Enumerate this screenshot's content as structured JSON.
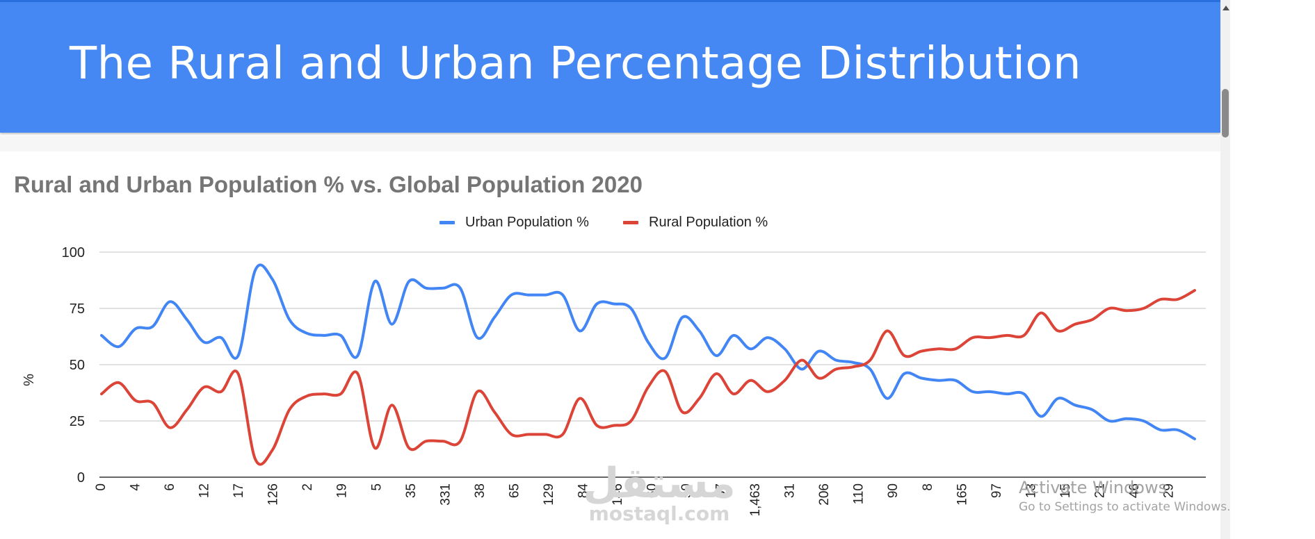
{
  "slide": {
    "title": "The Rural and Urban Percentage Distribution"
  },
  "chart_data": {
    "type": "line",
    "title": "Rural and Urban Population % vs. Global Population 2020",
    "ylabel": "%",
    "xlabel": "",
    "ylim": [
      0,
      100
    ],
    "yticks": [
      0,
      25,
      50,
      75,
      100
    ],
    "grid": true,
    "legend": "top",
    "x_tick_labels": [
      "0",
      "4",
      "6",
      "12",
      "17",
      "126",
      "2",
      "19",
      "5",
      "35",
      "331",
      "38",
      "65",
      "129",
      "84",
      "146",
      "60",
      "59",
      "37",
      "1,463",
      "31",
      "206",
      "110",
      "90",
      "8",
      "165",
      "97",
      "13",
      "15",
      "21",
      "46",
      "29"
    ],
    "series": [
      {
        "name": "Urban Population %",
        "color": "#4285f4",
        "values": [
          63,
          58,
          66,
          67,
          78,
          70,
          60,
          62,
          54,
          92,
          88,
          70,
          64,
          63,
          63,
          54,
          87,
          68,
          87,
          84,
          84,
          84,
          62,
          71,
          81,
          81,
          81,
          81,
          65,
          77,
          77,
          75,
          60,
          53,
          71,
          65,
          54,
          63,
          57,
          62,
          57,
          48,
          56,
          52,
          51,
          48,
          35,
          46,
          44,
          43,
          43,
          38,
          38,
          37,
          37,
          27,
          35,
          32,
          30,
          25,
          26,
          25,
          21,
          21,
          17
        ]
      },
      {
        "name": "Rural Population %",
        "color": "#db4437",
        "values": [
          37,
          42,
          34,
          33,
          22,
          30,
          40,
          38,
          46,
          8,
          12,
          30,
          36,
          37,
          37,
          46,
          13,
          32,
          13,
          16,
          16,
          16,
          38,
          29,
          19,
          19,
          19,
          19,
          35,
          23,
          23,
          25,
          40,
          47,
          29,
          35,
          46,
          37,
          43,
          38,
          43,
          52,
          44,
          48,
          49,
          52,
          65,
          54,
          56,
          57,
          57,
          62,
          62,
          63,
          63,
          73,
          65,
          68,
          70,
          75,
          74,
          75,
          79,
          79,
          83
        ]
      }
    ]
  },
  "watermark": {
    "icon": "مستقل",
    "url": "mostaql.com"
  },
  "activation": {
    "title": "Activate Windows",
    "subtitle": "Go to Settings to activate Windows."
  }
}
